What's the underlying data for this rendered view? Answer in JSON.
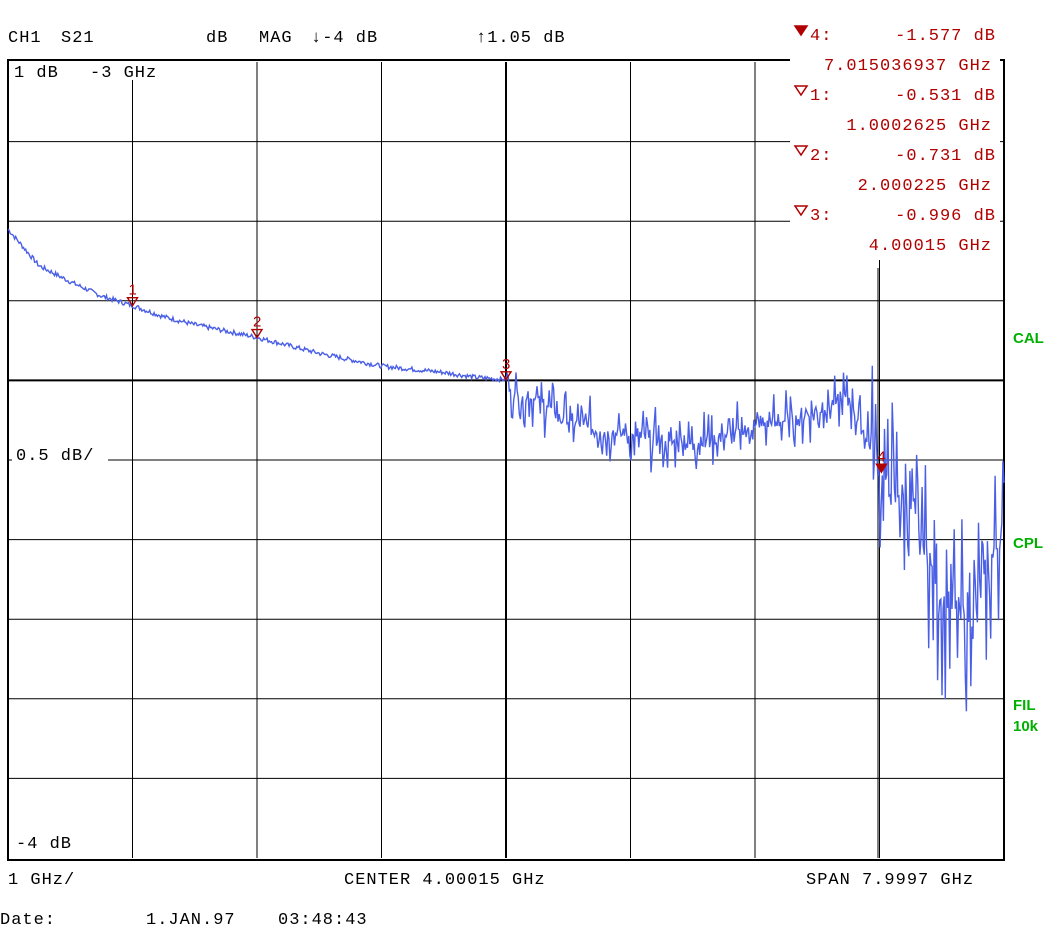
{
  "header": {
    "channel": "CH1",
    "param": "S21",
    "unit": "dB",
    "format": "MAG",
    "ref_arrow": "↓-4 dB",
    "top_arrow": "↑1.05 dB"
  },
  "scale": {
    "top_left": "1 dB",
    "top_left_freq": "-3 GHz",
    "mid_label": "0.5 dB/",
    "bottom_label": "-4 dB",
    "x_div": "1 GHz/",
    "center": "CENTER 4.00015 GHz",
    "span": "SPAN 7.9997 GHz"
  },
  "footer": {
    "date_label": "Date:",
    "date_value": "1.JAN.97",
    "time_value": "03:48:43"
  },
  "annotations": {
    "cal": "CAL",
    "cpl": "CPL",
    "fil": "FIL",
    "fil_bw": "10k"
  },
  "markers": [
    {
      "id": "4",
      "label": "4:",
      "value": "-1.577 dB",
      "freq": "7.015036937 GHz",
      "active": true
    },
    {
      "id": "1",
      "label": "1:",
      "value": "-0.531 dB",
      "freq": "1.0002625 GHz",
      "active": false
    },
    {
      "id": "2",
      "label": "2:",
      "value": "-0.731 dB",
      "freq": "2.000225 GHz",
      "active": false
    },
    {
      "id": "3",
      "label": "3:",
      "value": "-0.996 dB",
      "freq": "4.00015 GHz",
      "active": false
    }
  ],
  "colors": {
    "trace": "#4a5fe6",
    "marker": "#b00000",
    "status": "#00b000",
    "grid": "#000000"
  },
  "chart_data": {
    "type": "line",
    "xlabel": "",
    "ylabel": "",
    "xlim": [
      0.0003,
      7.99995
    ],
    "ylim": [
      -4,
      1
    ],
    "y_per_div": 0.5,
    "x_per_div": 1,
    "grid": true,
    "series": [
      {
        "x": [
          0.0003,
          0.25,
          0.5,
          0.75,
          1.0,
          1.25,
          1.5,
          1.75,
          2.0,
          2.25,
          2.5,
          2.75,
          3.0,
          3.25,
          3.5,
          3.75,
          4.0,
          4.05,
          4.25,
          4.5,
          4.75,
          5.0,
          5.25,
          5.5,
          5.75,
          6.0,
          6.25,
          6.5,
          6.75,
          7.0,
          7.25,
          7.5,
          7.75,
          8.0
        ],
        "values": [
          -0.05,
          -0.28,
          -0.38,
          -0.47,
          -0.53,
          -0.6,
          -0.65,
          -0.69,
          -0.73,
          -0.78,
          -0.83,
          -0.87,
          -0.91,
          -0.93,
          -0.95,
          -0.98,
          -0.996,
          -1.1,
          -1.12,
          -1.25,
          -1.32,
          -1.35,
          -1.38,
          -1.4,
          -1.35,
          -1.3,
          -1.25,
          -1.2,
          -1.1,
          -1.577,
          -1.8,
          -2.4,
          -2.5,
          -1.9
        ]
      }
    ],
    "markers": [
      {
        "x": 1.0002625,
        "y": -0.531
      },
      {
        "x": 2.000225,
        "y": -0.731
      },
      {
        "x": 4.00015,
        "y": -0.996
      },
      {
        "x": 7.015036937,
        "y": -1.577
      }
    ]
  }
}
